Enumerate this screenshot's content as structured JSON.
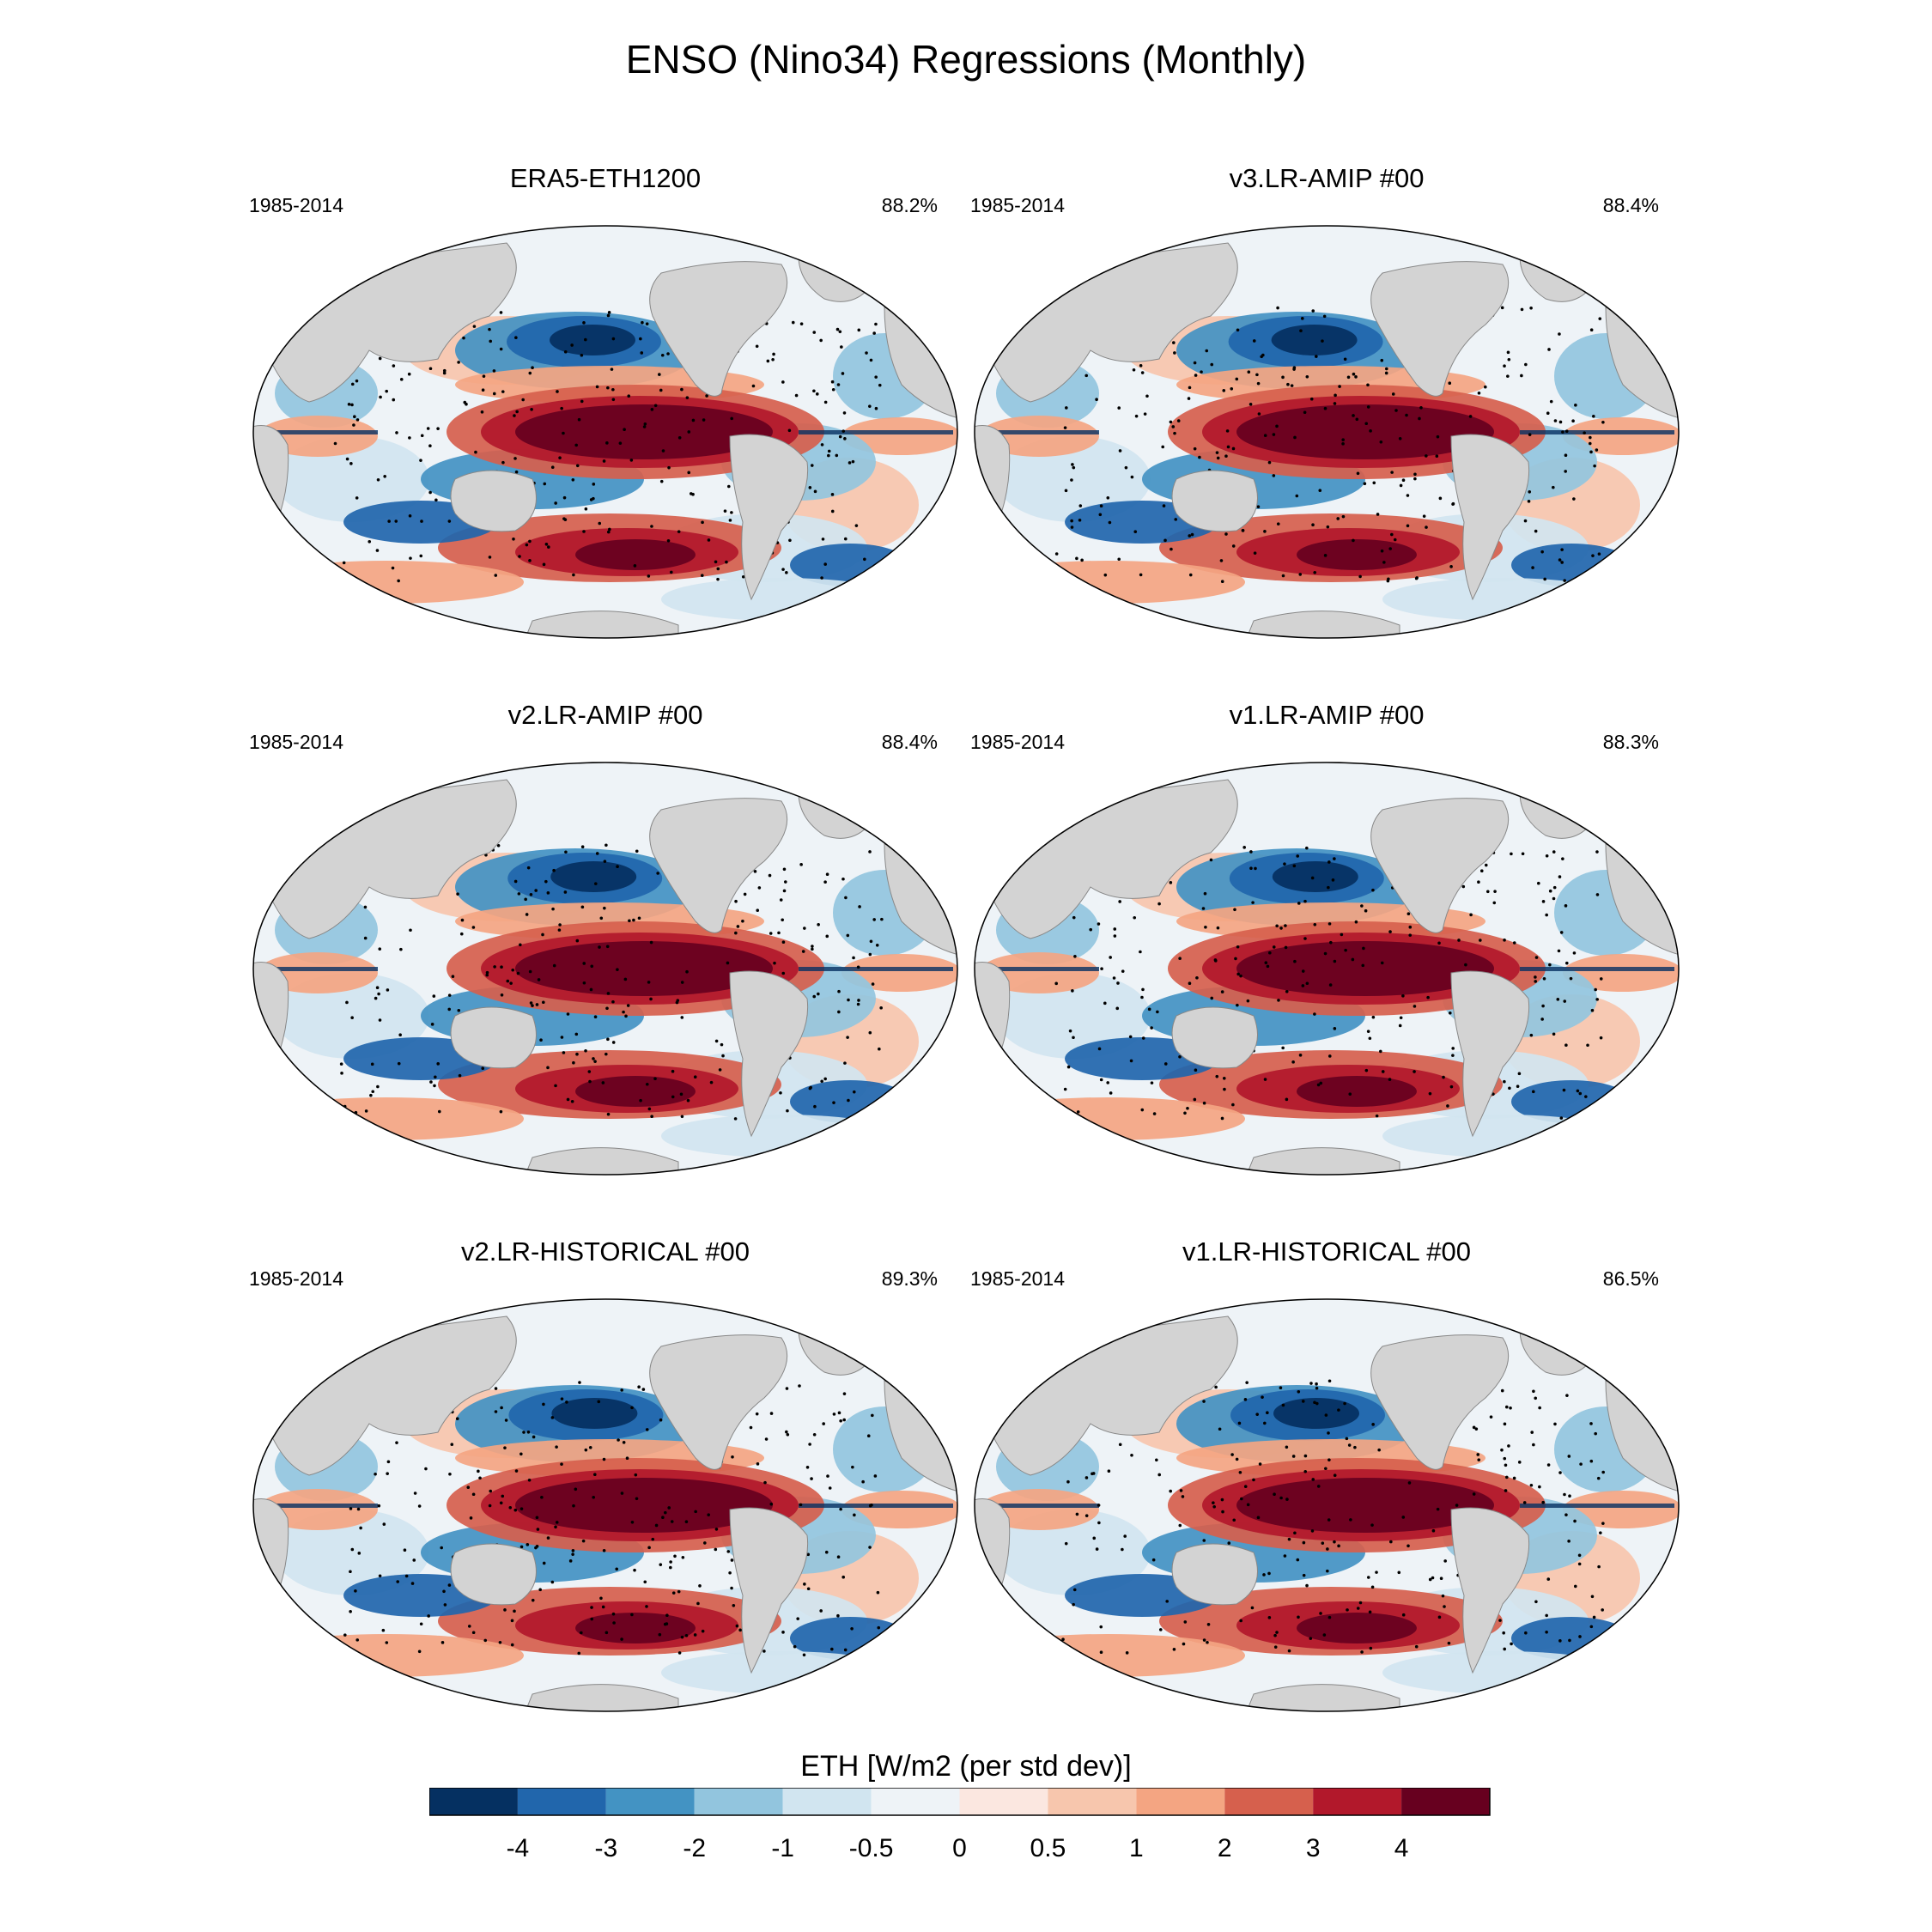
{
  "title": "ENSO (Nino34) Regressions (Monthly)",
  "chart_data": {
    "type": "heatmap",
    "projection": "Robinson (Pacific-centered)",
    "panels": [
      {
        "title": "ERA5-ETH1200",
        "period": "1985-2014",
        "pattern_corr": "88.2%"
      },
      {
        "title": "v3.LR-AMIP  #00",
        "period": "1985-2014",
        "pattern_corr": "88.4%"
      },
      {
        "title": "v2.LR-AMIP  #00",
        "period": "1985-2014",
        "pattern_corr": "88.4%"
      },
      {
        "title": "v1.LR-AMIP  #00",
        "period": "1985-2014",
        "pattern_corr": "88.3%"
      },
      {
        "title": "v2.LR-HISTORICAL  #00",
        "period": "1985-2014",
        "pattern_corr": "89.3%"
      },
      {
        "title": "v1.LR-HISTORICAL  #00",
        "period": "1985-2014",
        "pattern_corr": "86.5%"
      }
    ],
    "colorbar": {
      "label": "ETH [W/m2 (per std dev)]",
      "levels": [
        "-4",
        "-3",
        "-2",
        "-1",
        "-0.5",
        "0",
        "0.5",
        "1",
        "2",
        "3",
        "4"
      ],
      "colors": [
        "#053061",
        "#2166ac",
        "#4393c3",
        "#92c5de",
        "#d1e5f0",
        "#eef3f7",
        "#fbe7e0",
        "#f7c6ad",
        "#f4a582",
        "#d6604d",
        "#b2182b",
        "#67001f"
      ]
    },
    "colors": {
      "land": "#d3d3d3",
      "strong_positive": "#67001f",
      "strong_negative": "#053061"
    }
  }
}
